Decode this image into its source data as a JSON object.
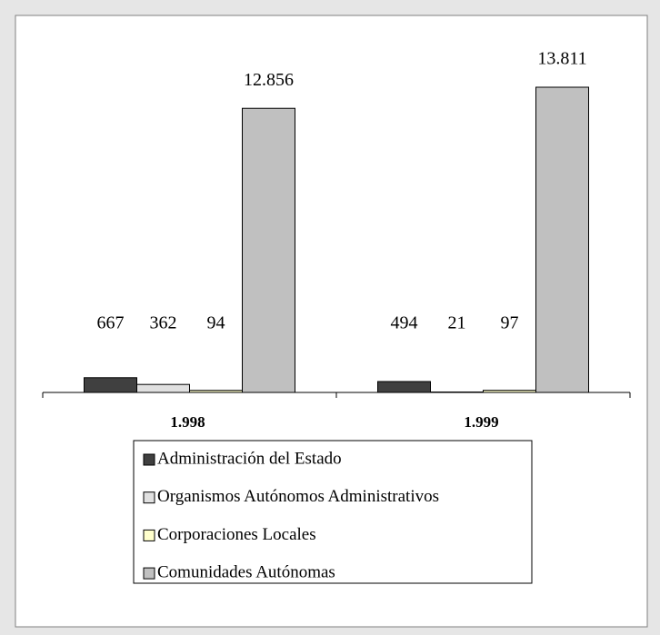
{
  "chart_data": {
    "type": "bar",
    "categories": [
      "1.998",
      "1.999"
    ],
    "series": [
      {
        "name": "Administración del Estado",
        "color": "#404040",
        "values": [
          667,
          494
        ]
      },
      {
        "name": "Organismos Autónomos Administrativos",
        "color": "#e0e0e0",
        "values": [
          362,
          21
        ]
      },
      {
        "name": "Corporaciones Locales",
        "color": "#ffffcc",
        "values": [
          94,
          97
        ]
      },
      {
        "name": "Comunidades Autónomas",
        "color": "#c0c0c0",
        "values": [
          12856,
          13811
        ],
        "value_labels": [
          "12.856",
          "13.811"
        ]
      }
    ],
    "legend": "bottom"
  }
}
